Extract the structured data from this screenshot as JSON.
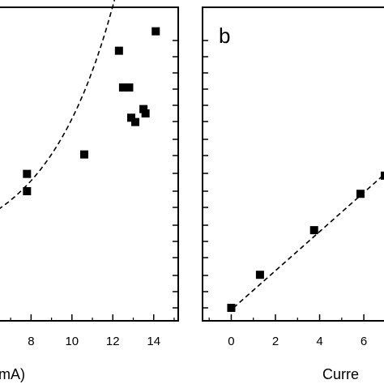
{
  "chart_data": [
    {
      "type": "scatter",
      "panel_label": "",
      "xlabel": "mA)",
      "ylabel": "",
      "xlim": [
        6.4,
        15.2
      ],
      "x_ticks": [
        8,
        10,
        12,
        14
      ],
      "tick_labels": [
        "8",
        "10",
        "12",
        "14"
      ],
      "series": [
        {
          "points": [
            {
              "x": 7.8,
              "y": 1.68
            },
            {
              "x": 7.8,
              "y": 1.6
            },
            {
              "x": 10.6,
              "y": 1.77
            },
            {
              "x": 12.3,
              "y": 2.25
            },
            {
              "x": 12.5,
              "y": 2.08
            },
            {
              "x": 12.8,
              "y": 2.08
            },
            {
              "x": 12.9,
              "y": 1.94
            },
            {
              "x": 13.1,
              "y": 1.92
            },
            {
              "x": 13.5,
              "y": 1.98
            },
            {
              "x": 13.6,
              "y": 1.96
            },
            {
              "x": 14.1,
              "y": 2.34
            }
          ]
        }
      ],
      "fit": {
        "style": "dashed",
        "shape": "exponential"
      }
    },
    {
      "type": "scatter",
      "panel_label": "b",
      "xlabel": "Curre",
      "ylabel": "",
      "xlim": [
        -1.3,
        7.5
      ],
      "x_ticks": [
        0,
        2,
        4,
        6
      ],
      "tick_labels": [
        "0",
        "2",
        "4",
        "6"
      ],
      "series": [
        {
          "points": [
            {
              "x": 0.0,
              "y": 0.0
            },
            {
              "x": 1.3,
              "y": 0.2
            },
            {
              "x": 3.75,
              "y": 0.47
            },
            {
              "x": 5.85,
              "y": 0.69
            },
            {
              "x": 6.95,
              "y": 0.8
            }
          ]
        }
      ],
      "fit": {
        "style": "dashed",
        "shape": "linear"
      }
    }
  ]
}
